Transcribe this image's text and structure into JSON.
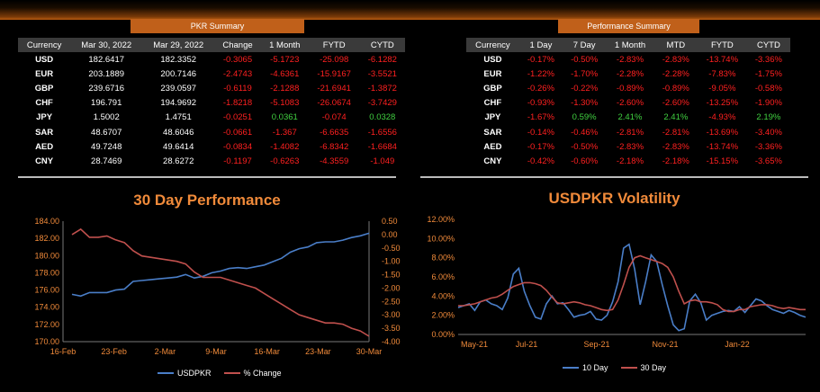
{
  "pkr_summary": {
    "title": "PKR Summary",
    "headers": [
      "Currency",
      "Mar 30, 2022",
      "Mar 29, 2022",
      "Change",
      "1 Month",
      "FYTD",
      "CYTD"
    ],
    "rows": [
      {
        "currency": "USD",
        "d1": "182.6417",
        "d2": "182.3352",
        "change": "-0.3065",
        "m1": "-5.1723",
        "fytd": "-25.098",
        "cytd": "-6.1282"
      },
      {
        "currency": "EUR",
        "d1": "203.1889",
        "d2": "200.7146",
        "change": "-2.4743",
        "m1": "-4.6361",
        "fytd": "-15.9167",
        "cytd": "-3.5521"
      },
      {
        "currency": "GBP",
        "d1": "239.6716",
        "d2": "239.0597",
        "change": "-0.6119",
        "m1": "-2.1288",
        "fytd": "-21.6941",
        "cytd": "-1.3872"
      },
      {
        "currency": "CHF",
        "d1": "196.791",
        "d2": "194.9692",
        "change": "-1.8218",
        "m1": "-5.1083",
        "fytd": "-26.0674",
        "cytd": "-3.7429"
      },
      {
        "currency": "JPY",
        "d1": "1.5002",
        "d2": "1.4751",
        "change": "-0.0251",
        "m1": "0.0361",
        "fytd": "-0.074",
        "cytd": "0.0328"
      },
      {
        "currency": "SAR",
        "d1": "48.6707",
        "d2": "48.6046",
        "change": "-0.0661",
        "m1": "-1.367",
        "fytd": "-6.6635",
        "cytd": "-1.6556"
      },
      {
        "currency": "AED",
        "d1": "49.7248",
        "d2": "49.6414",
        "change": "-0.0834",
        "m1": "-1.4082",
        "fytd": "-6.8342",
        "cytd": "-1.6684"
      },
      {
        "currency": "CNY",
        "d1": "28.7469",
        "d2": "28.6272",
        "change": "-0.1197",
        "m1": "-0.6263",
        "fytd": "-4.3559",
        "cytd": "-1.049"
      }
    ]
  },
  "performance_summary": {
    "title": "Performance Summary",
    "headers": [
      "Currency",
      "1 Day",
      "7 Day",
      "1 Month",
      "MTD",
      "FYTD",
      "CYTD"
    ],
    "rows": [
      {
        "currency": "USD",
        "d1": "-0.17%",
        "d7": "-0.50%",
        "m1": "-2.83%",
        "mtd": "-2.83%",
        "fytd": "-13.74%",
        "cytd": "-3.36%"
      },
      {
        "currency": "EUR",
        "d1": "-1.22%",
        "d7": "-1.70%",
        "m1": "-2.28%",
        "mtd": "-2.28%",
        "fytd": "-7.83%",
        "cytd": "-1.75%"
      },
      {
        "currency": "GBP",
        "d1": "-0.26%",
        "d7": "-0.22%",
        "m1": "-0.89%",
        "mtd": "-0.89%",
        "fytd": "-9.05%",
        "cytd": "-0.58%"
      },
      {
        "currency": "CHF",
        "d1": "-0.93%",
        "d7": "-1.30%",
        "m1": "-2.60%",
        "mtd": "-2.60%",
        "fytd": "-13.25%",
        "cytd": "-1.90%"
      },
      {
        "currency": "JPY",
        "d1": "-1.67%",
        "d7": "0.59%",
        "m1": "2.41%",
        "mtd": "2.41%",
        "fytd": "-4.93%",
        "cytd": "2.19%"
      },
      {
        "currency": "SAR",
        "d1": "-0.14%",
        "d7": "-0.46%",
        "m1": "-2.81%",
        "mtd": "-2.81%",
        "fytd": "-13.69%",
        "cytd": "-3.40%"
      },
      {
        "currency": "AED",
        "d1": "-0.17%",
        "d7": "-0.50%",
        "m1": "-2.83%",
        "mtd": "-2.83%",
        "fytd": "-13.74%",
        "cytd": "-3.36%"
      },
      {
        "currency": "CNY",
        "d1": "-0.42%",
        "d7": "-0.60%",
        "m1": "-2.18%",
        "mtd": "-2.18%",
        "fytd": "-15.15%",
        "cytd": "-3.65%"
      }
    ]
  },
  "colors": {
    "accent": "#f08a3a",
    "banner": "#c0601a",
    "blue": "#4a7ec8",
    "red": "#c0504d",
    "negative": "#ff2020",
    "positive": "#40d040"
  },
  "chart_data": [
    {
      "type": "line",
      "title": "30 Day Performance",
      "x_ticks": [
        "16-Feb",
        "23-Feb",
        "2-Mar",
        "9-Mar",
        "16-Mar",
        "23-Mar",
        "30-Mar"
      ],
      "y_left_ticks": [
        "184.00",
        "182.00",
        "180.00",
        "178.00",
        "176.00",
        "174.00",
        "172.00",
        "170.00"
      ],
      "y_right_ticks": [
        "0.50",
        "0.00",
        "-0.50",
        "-1.00",
        "-1.50",
        "-2.00",
        "-2.50",
        "-3.00",
        "-3.50",
        "-4.00"
      ],
      "ylim_left": [
        170,
        184
      ],
      "ylim_right": [
        -4,
        0.5
      ],
      "series": [
        {
          "name": "USDPKR",
          "axis": "left",
          "color": "#4a7ec8",
          "values": [
            175.5,
            175.3,
            175.7,
            175.7,
            175.7,
            176.0,
            176.1,
            177.0,
            177.1,
            177.2,
            177.3,
            177.4,
            177.5,
            177.8,
            177.4,
            177.6,
            178.0,
            178.2,
            178.5,
            178.6,
            178.5,
            178.7,
            178.9,
            179.3,
            179.7,
            180.4,
            180.8,
            181.0,
            181.5,
            181.6,
            181.6,
            181.8,
            182.1,
            182.3,
            182.6
          ]
        },
        {
          "name": "% Change",
          "axis": "right",
          "color": "#c0504d",
          "values": [
            0.0,
            0.2,
            -0.1,
            -0.1,
            -0.05,
            -0.2,
            -0.3,
            -0.6,
            -0.8,
            -0.85,
            -0.9,
            -0.95,
            -1.0,
            -1.1,
            -1.4,
            -1.6,
            -1.6,
            -1.6,
            -1.7,
            -1.8,
            -1.9,
            -2.0,
            -2.2,
            -2.4,
            -2.6,
            -2.8,
            -3.0,
            -3.1,
            -3.2,
            -3.3,
            -3.3,
            -3.35,
            -3.5,
            -3.6,
            -3.8
          ]
        }
      ],
      "legend": "bottom"
    },
    {
      "type": "line",
      "title": "USDPKR Volatility",
      "x_ticks": [
        "May-21",
        "Jul-21",
        "Sep-21",
        "Nov-21",
        "Jan-22"
      ],
      "y_ticks": [
        "12.00%",
        "10.00%",
        "8.00%",
        "6.00%",
        "4.00%",
        "2.00%",
        "0.00%"
      ],
      "ylim": [
        0,
        12
      ],
      "series": [
        {
          "name": "10 Day",
          "color": "#4a7ec8",
          "values": [
            2.8,
            3.0,
            3.2,
            2.5,
            3.4,
            3.6,
            3.2,
            3.0,
            2.6,
            3.8,
            6.3,
            6.9,
            4.5,
            3.0,
            1.8,
            1.6,
            3.2,
            4.0,
            3.2,
            3.3,
            2.6,
            1.8,
            2.0,
            2.1,
            2.4,
            1.6,
            1.5,
            2.0,
            3.4,
            5.5,
            9.0,
            9.4,
            6.8,
            3.1,
            5.5,
            8.3,
            7.6,
            5.2,
            3.0,
            1.0,
            0.4,
            0.6,
            3.5,
            4.2,
            3.3,
            1.5,
            2.0,
            2.2,
            2.4,
            2.5,
            2.4,
            2.9,
            2.3,
            3.0,
            3.7,
            3.5,
            3.0,
            2.6,
            2.4,
            2.2,
            2.5,
            2.3,
            2.0,
            1.8
          ]
        },
        {
          "name": "30 Day",
          "color": "#c0504d",
          "values": [
            3.0,
            3.0,
            3.1,
            3.2,
            3.4,
            3.6,
            3.8,
            3.9,
            4.2,
            4.6,
            5.0,
            5.2,
            5.4,
            5.4,
            5.3,
            5.1,
            4.6,
            3.9,
            3.3,
            3.2,
            3.3,
            3.4,
            3.3,
            3.1,
            3.0,
            2.8,
            2.6,
            2.5,
            2.6,
            3.6,
            5.2,
            7.0,
            8.0,
            8.2,
            8.0,
            7.8,
            7.6,
            7.4,
            7.0,
            6.0,
            4.5,
            3.2,
            3.5,
            3.6,
            3.4,
            3.4,
            3.3,
            3.1,
            2.6,
            2.4,
            2.4,
            2.6,
            2.6,
            2.9,
            3.0,
            3.1,
            3.1,
            3.0,
            2.8,
            2.7,
            2.8,
            2.7,
            2.6,
            2.6
          ]
        }
      ],
      "legend": "bottom"
    }
  ]
}
